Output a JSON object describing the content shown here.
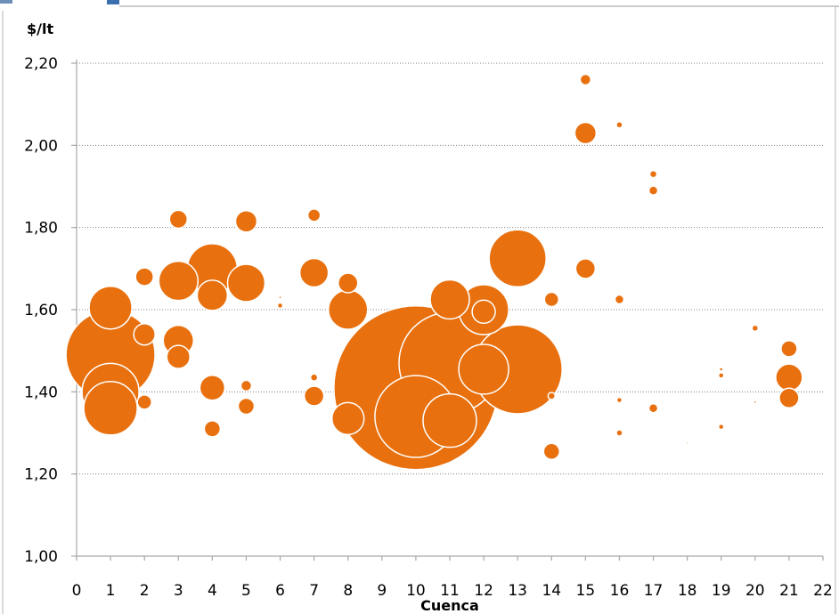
{
  "chart_data": {
    "type": "bubble",
    "title": "",
    "ylabel": "$/lt",
    "xlabel": "Cuenca",
    "xlim": [
      0,
      22
    ],
    "ylim": [
      1.0,
      2.2
    ],
    "x_ticks": [
      "0",
      "1",
      "2",
      "3",
      "4",
      "5",
      "6",
      "7",
      "8",
      "9",
      "10",
      "11",
      "12",
      "13",
      "14",
      "15",
      "16",
      "17",
      "18",
      "19",
      "20",
      "21",
      "22"
    ],
    "y_ticks": [
      "1,00",
      "1,20",
      "1,40",
      "1,60",
      "1,80",
      "2,00",
      "2,20"
    ],
    "grid": true,
    "legend": "none",
    "color": "#E8700E",
    "bubbles": [
      {
        "x": 1,
        "y": 1.36,
        "size": 30
      },
      {
        "x": 1,
        "y": 1.4,
        "size": 32
      },
      {
        "x": 1,
        "y": 1.49,
        "size": 50
      },
      {
        "x": 1,
        "y": 1.605,
        "size": 24
      },
      {
        "x": 2,
        "y": 1.68,
        "size": 10
      },
      {
        "x": 2,
        "y": 1.54,
        "size": 12
      },
      {
        "x": 2,
        "y": 1.375,
        "size": 8
      },
      {
        "x": 2,
        "y": 1.33,
        "size": 1
      },
      {
        "x": 3,
        "y": 1.82,
        "size": 10
      },
      {
        "x": 3,
        "y": 1.67,
        "size": 22
      },
      {
        "x": 3,
        "y": 1.525,
        "size": 17
      },
      {
        "x": 3,
        "y": 1.485,
        "size": 13
      },
      {
        "x": 4,
        "y": 1.7,
        "size": 28
      },
      {
        "x": 4,
        "y": 1.635,
        "size": 17
      },
      {
        "x": 4,
        "y": 1.41,
        "size": 14
      },
      {
        "x": 4,
        "y": 1.31,
        "size": 9
      },
      {
        "x": 5,
        "y": 1.815,
        "size": 12
      },
      {
        "x": 5,
        "y": 1.665,
        "size": 21
      },
      {
        "x": 5,
        "y": 1.415,
        "size": 6
      },
      {
        "x": 5,
        "y": 1.365,
        "size": 9
      },
      {
        "x": 6,
        "y": 1.63,
        "size": 1.5
      },
      {
        "x": 6,
        "y": 1.61,
        "size": 3
      },
      {
        "x": 6,
        "y": 1.44,
        "size": 1
      },
      {
        "x": 7,
        "y": 1.83,
        "size": 7
      },
      {
        "x": 7,
        "y": 1.69,
        "size": 16
      },
      {
        "x": 7,
        "y": 1.435,
        "size": 4
      },
      {
        "x": 7,
        "y": 1.39,
        "size": 11
      },
      {
        "x": 8,
        "y": 1.665,
        "size": 11
      },
      {
        "x": 8,
        "y": 1.6,
        "size": 22
      },
      {
        "x": 8,
        "y": 1.335,
        "size": 18
      },
      {
        "x": 10,
        "y": 1.41,
        "size": 92
      },
      {
        "x": 10,
        "y": 1.34,
        "size": 46
      },
      {
        "x": 11,
        "y": 1.625,
        "size": 22
      },
      {
        "x": 11,
        "y": 1.47,
        "size": 57
      },
      {
        "x": 11,
        "y": 1.33,
        "size": 30
      },
      {
        "x": 12,
        "y": 1.6,
        "size": 28
      },
      {
        "x": 12,
        "y": 1.595,
        "size": 13
      },
      {
        "x": 12,
        "y": 1.455,
        "size": 28
      },
      {
        "x": 13,
        "y": 1.725,
        "size": 32
      },
      {
        "x": 13,
        "y": 1.455,
        "size": 50
      },
      {
        "x": 14,
        "y": 1.625,
        "size": 8
      },
      {
        "x": 14,
        "y": 1.39,
        "size": 4
      },
      {
        "x": 14,
        "y": 1.255,
        "size": 9
      },
      {
        "x": 15,
        "y": 2.16,
        "size": 6
      },
      {
        "x": 15,
        "y": 2.03,
        "size": 12
      },
      {
        "x": 15,
        "y": 1.7,
        "size": 11
      },
      {
        "x": 16,
        "y": 2.05,
        "size": 3.5
      },
      {
        "x": 16,
        "y": 1.625,
        "size": 5
      },
      {
        "x": 16,
        "y": 1.38,
        "size": 3
      },
      {
        "x": 16,
        "y": 1.3,
        "size": 3.5
      },
      {
        "x": 17,
        "y": 1.93,
        "size": 4
      },
      {
        "x": 17,
        "y": 1.89,
        "size": 5
      },
      {
        "x": 17,
        "y": 1.36,
        "size": 5
      },
      {
        "x": 18,
        "y": 1.275,
        "size": 1.2
      },
      {
        "x": 19,
        "y": 1.455,
        "size": 2
      },
      {
        "x": 19,
        "y": 1.44,
        "size": 3
      },
      {
        "x": 19,
        "y": 1.315,
        "size": 3
      },
      {
        "x": 20,
        "y": 1.555,
        "size": 3.5
      },
      {
        "x": 20,
        "y": 1.415,
        "size": 1
      },
      {
        "x": 20,
        "y": 1.375,
        "size": 1.5
      },
      {
        "x": 21,
        "y": 1.505,
        "size": 9
      },
      {
        "x": 21,
        "y": 1.435,
        "size": 15
      },
      {
        "x": 21,
        "y": 1.385,
        "size": 11
      }
    ]
  }
}
